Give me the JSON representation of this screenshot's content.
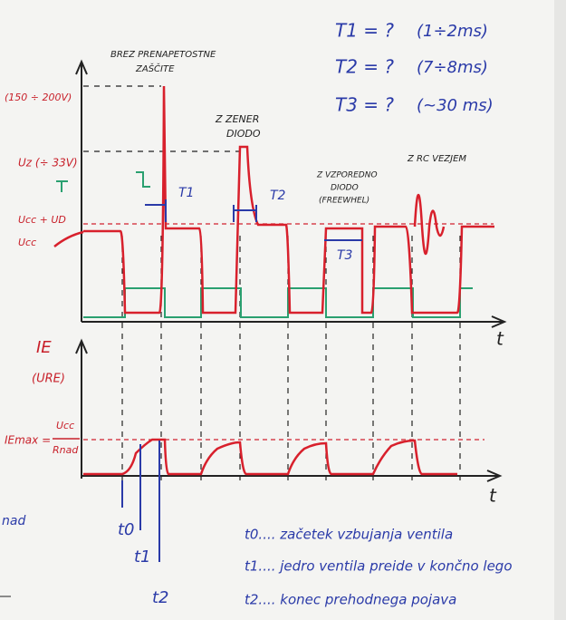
{
  "header": {
    "times": [
      {
        "label": "T1 = ?",
        "range": "(1÷2ms)"
      },
      {
        "label": "T2 = ?",
        "range": "(7÷8ms)"
      },
      {
        "label": "T3 = ?",
        "range": "(~30 ms)"
      }
    ]
  },
  "upper_plot": {
    "cases": [
      "BREZ PRENAPETOSTNE",
      "ZAŠČITE",
      "Z ZENER",
      "DIODO",
      "Z VZPOREDNO",
      "DIODO",
      "(FREEWHEL)",
      "Z RC VEZJEM"
    ],
    "levels": [
      "(150 ÷ 200V)",
      "Uz (÷ 33V)",
      "Ucc + UD",
      "Ucc"
    ],
    "intervals": [
      "T1",
      "T2",
      "T3"
    ],
    "axis": "t"
  },
  "lower_plot": {
    "y_label": "IE",
    "y_sub": "(URE)",
    "max_label": "IEmax =",
    "max_num": "Ucc",
    "max_den": "Rnad",
    "axis": "t",
    "instants": [
      "t0",
      "t1",
      "t2"
    ]
  },
  "legend": [
    "t0.... začetek vzbujanja ventila",
    "t1.... jedro ventila preide v končno lego",
    "t2.... konec prehodnega pojava"
  ],
  "edge_text": "nad"
}
